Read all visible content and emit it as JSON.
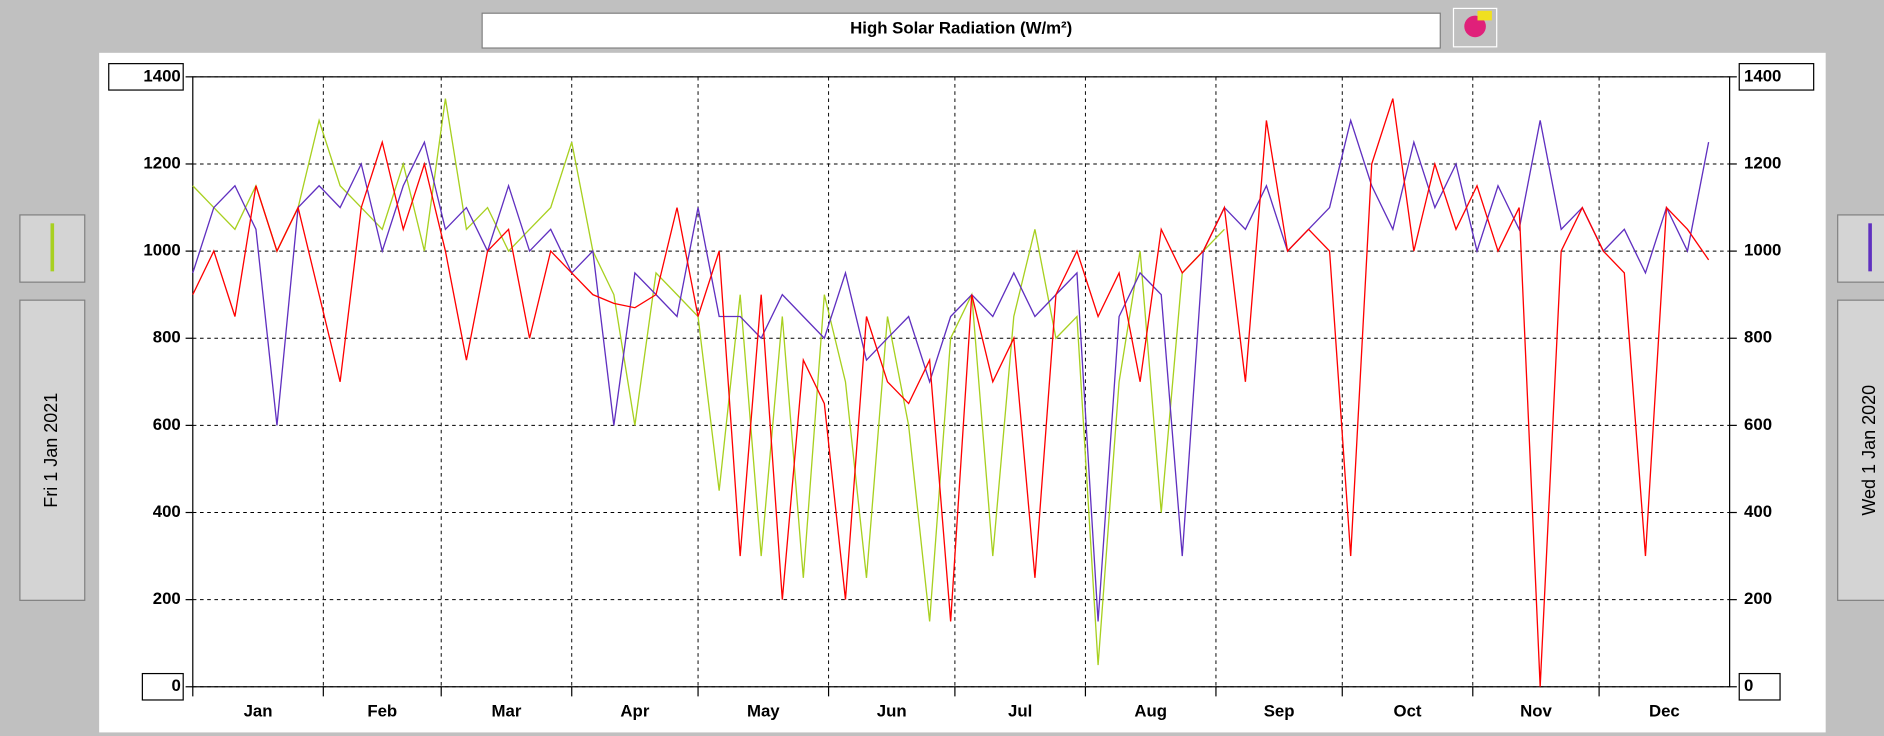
{
  "chart_data": {
    "type": "line",
    "title": "High Solar Radiation (W/m²)",
    "x": [
      1,
      6,
      11,
      16,
      21,
      26,
      31,
      36,
      41,
      46,
      51,
      56,
      61,
      66,
      71,
      76,
      81,
      86,
      91,
      96,
      101,
      106,
      111,
      116,
      121,
      126,
      131,
      136,
      141,
      146,
      151,
      156,
      161,
      166,
      171,
      176,
      181,
      186,
      191,
      196,
      201,
      206,
      211,
      216,
      221,
      226,
      231,
      236,
      241,
      246,
      251,
      256,
      261,
      266,
      271,
      276,
      281,
      286,
      291,
      296,
      301,
      306,
      311,
      316,
      321,
      326,
      331,
      336,
      341,
      346,
      351,
      356,
      361
    ],
    "xlim": [
      1,
      366
    ],
    "xticks": [
      {
        "value": 1,
        "label": "Jan"
      },
      {
        "value": 32,
        "label": "Feb"
      },
      {
        "value": 60,
        "label": "Mar"
      },
      {
        "value": 91,
        "label": "Apr"
      },
      {
        "value": 121,
        "label": "May"
      },
      {
        "value": 152,
        "label": "Jun"
      },
      {
        "value": 182,
        "label": "Jul"
      },
      {
        "value": 213,
        "label": "Aug"
      },
      {
        "value": 244,
        "label": "Sep"
      },
      {
        "value": 274,
        "label": "Oct"
      },
      {
        "value": 305,
        "label": "Nov"
      },
      {
        "value": 335,
        "label": "Dec"
      }
    ],
    "ylim": [
      0,
      1400
    ],
    "yticks": [
      0,
      200,
      400,
      600,
      800,
      1000,
      1200,
      1400
    ],
    "y2lim": [
      0,
      1400
    ],
    "y2ticks": [
      0,
      200,
      400,
      600,
      800,
      1000,
      1200,
      1400
    ],
    "grid": true,
    "series": [
      {
        "name": "Fri 1 Jan 2021",
        "color": "#a8d020",
        "values": [
          1150,
          1100,
          1050,
          1150,
          1000,
          1100,
          1300,
          1150,
          1100,
          1050,
          1200,
          1000,
          1350,
          1050,
          1100,
          1000,
          1050,
          1100,
          1250,
          1000,
          900,
          600,
          950,
          900,
          850,
          450,
          900,
          300,
          850,
          250,
          900,
          700,
          250,
          850,
          600,
          150,
          800,
          900,
          300,
          850,
          1050,
          800,
          850,
          50,
          700,
          1000,
          400,
          950,
          1000,
          1050,
          null,
          null,
          null,
          null,
          null,
          null,
          null,
          null,
          null,
          null,
          null,
          null,
          null,
          null,
          null,
          null,
          null,
          null,
          null,
          null,
          null,
          null,
          null
        ]
      },
      {
        "name": "Wed 1 Jan 2020",
        "color": "#6030c0",
        "values": [
          950,
          1100,
          1150,
          1050,
          600,
          1100,
          1150,
          1100,
          1200,
          1000,
          1150,
          1250,
          1050,
          1100,
          1000,
          1150,
          1000,
          1050,
          950,
          1000,
          600,
          950,
          900,
          850,
          1100,
          850,
          850,
          800,
          900,
          850,
          800,
          950,
          750,
          800,
          850,
          700,
          850,
          900,
          850,
          950,
          850,
          900,
          950,
          150,
          850,
          950,
          900,
          300,
          1000,
          1100,
          1050,
          1150,
          1000,
          1050,
          1100,
          1300,
          1150,
          1050,
          1250,
          1100,
          1200,
          1000,
          1150,
          1050,
          1300,
          1050,
          1100,
          1000,
          1050,
          950,
          1100,
          1000,
          1250
        ]
      },
      {
        "color": "#ff0000",
        "values": [
          900,
          1000,
          850,
          1150,
          1000,
          1100,
          900,
          700,
          1100,
          1250,
          1050,
          1200,
          1000,
          750,
          1000,
          1050,
          800,
          1000,
          950,
          900,
          880,
          870,
          900,
          1100,
          850,
          1000,
          300,
          900,
          200,
          750,
          650,
          200,
          850,
          700,
          650,
          750,
          150,
          900,
          700,
          800,
          250,
          900,
          1000,
          850,
          950,
          700,
          1050,
          950,
          1000,
          1100,
          700,
          1300,
          1000,
          1050,
          1000,
          300,
          1200,
          1350,
          1000,
          1200,
          1050,
          1150,
          1000,
          1100,
          0,
          1000,
          1100,
          1000,
          950,
          300,
          1100,
          1050,
          980
        ]
      }
    ]
  }
}
